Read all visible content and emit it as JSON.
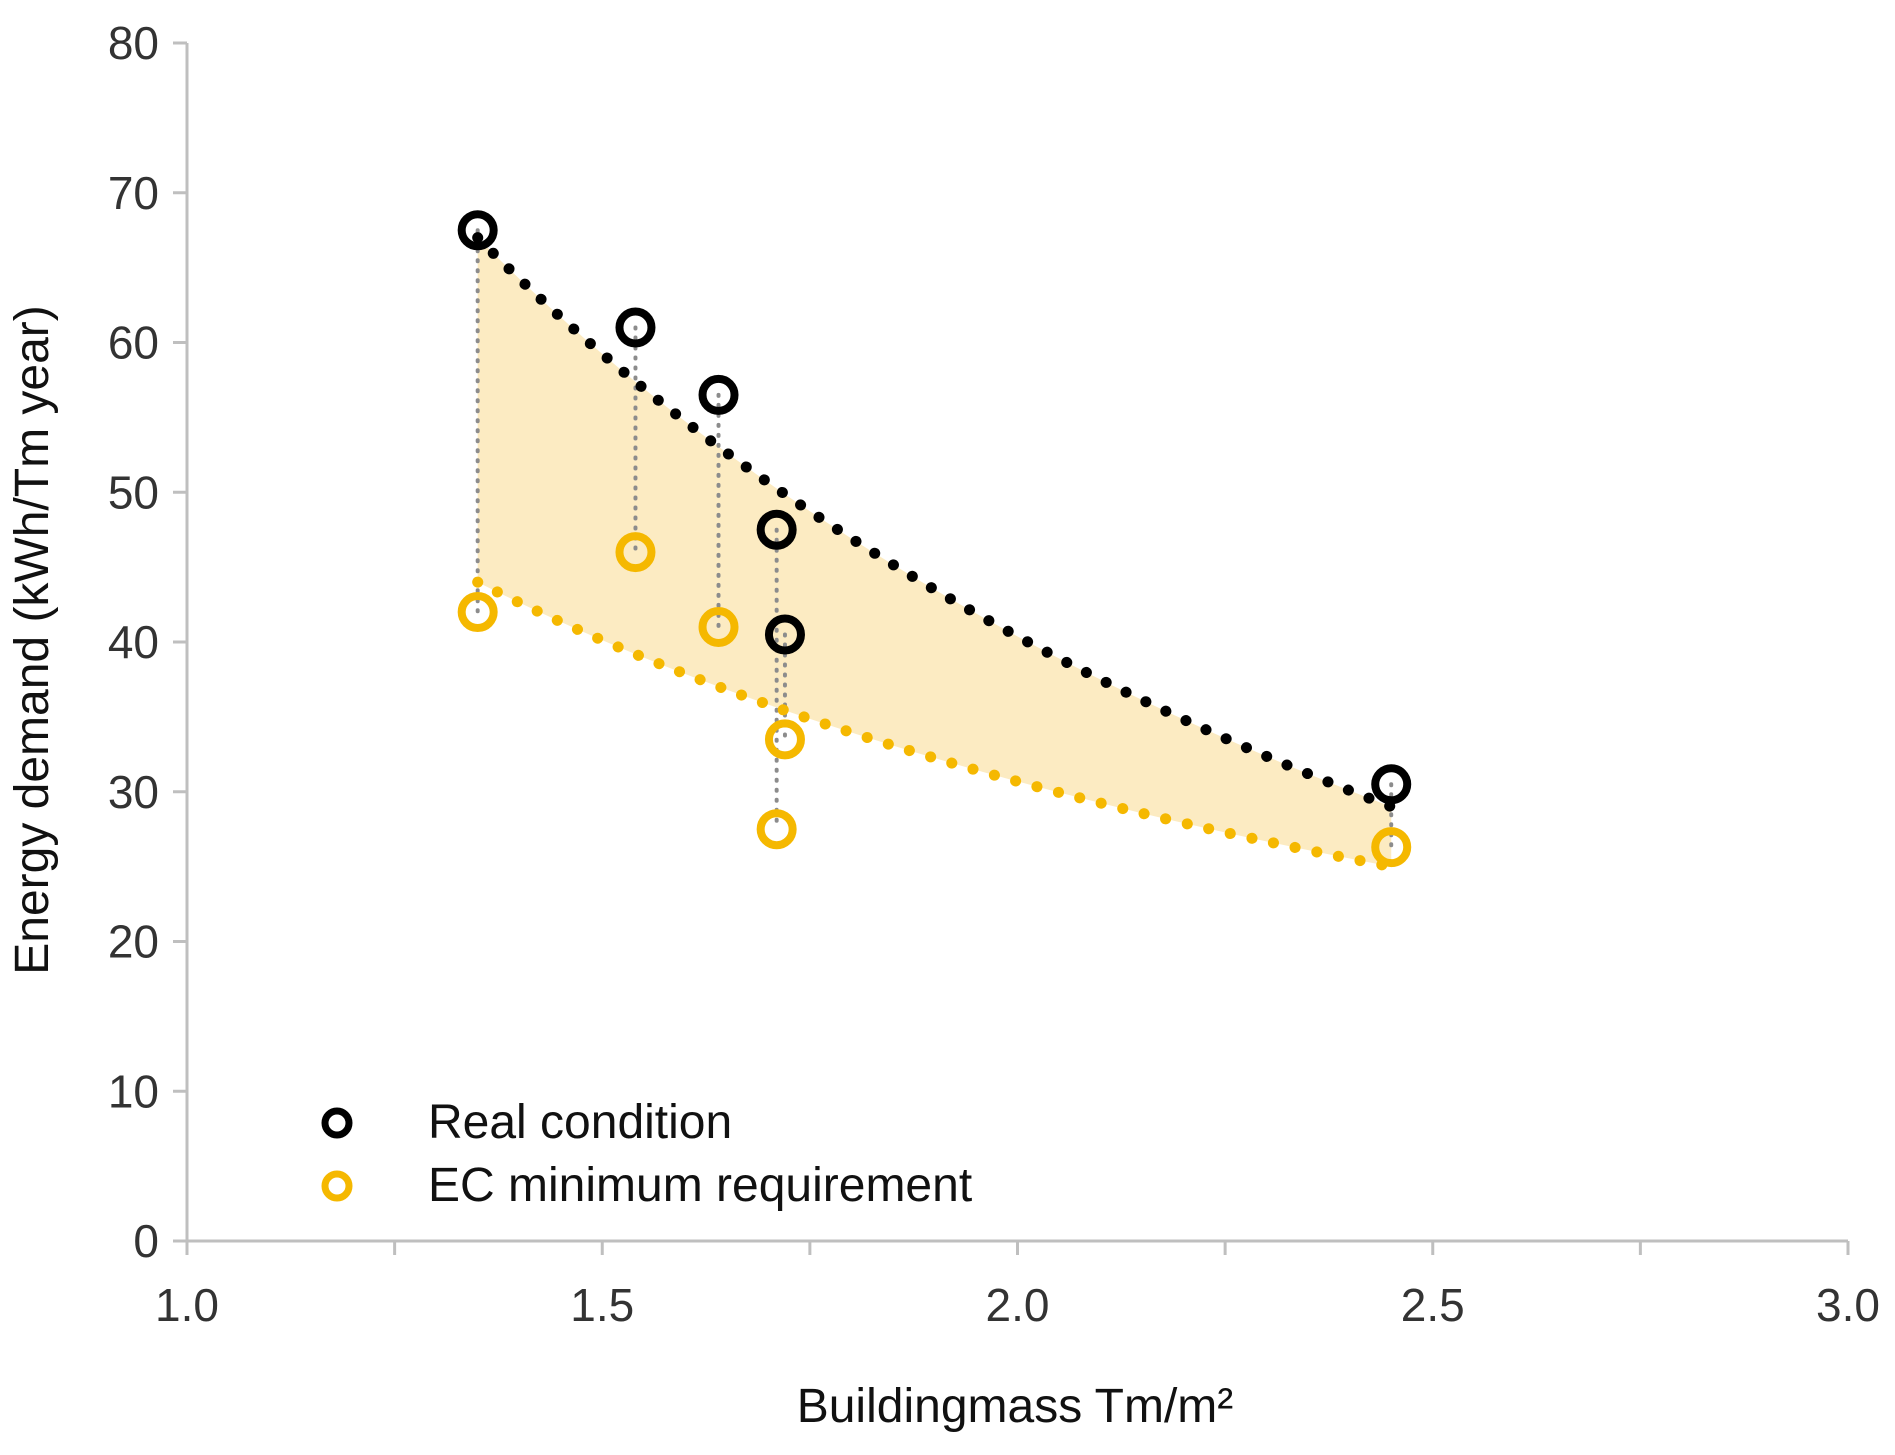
{
  "chart_data": {
    "type": "scatter",
    "title": "",
    "xlabel": "Buildingmass Tm/m²",
    "ylabel": "Energy demand (kWh/Tm year)",
    "xlim": [
      1.0,
      3.0
    ],
    "ylim": [
      0,
      80
    ],
    "x_ticks": [
      "1.0",
      "1.5",
      "2.0",
      "2.5",
      "3.0"
    ],
    "y_ticks": [
      "0",
      "10",
      "20",
      "30",
      "40",
      "50",
      "60",
      "70",
      "80"
    ],
    "grid": false,
    "legend_position": "bottom-left",
    "series": [
      {
        "name": "Real condition",
        "color": "#000000",
        "points": [
          [
            1.35,
            67.5
          ],
          [
            1.54,
            61.0
          ],
          [
            1.64,
            56.5
          ],
          [
            1.71,
            47.5
          ],
          [
            1.72,
            40.5
          ],
          [
            2.45,
            30.5
          ]
        ]
      },
      {
        "name": "EC minimum requirement",
        "color": "#F5B800",
        "points": [
          [
            1.35,
            42.0
          ],
          [
            1.54,
            46.0
          ],
          [
            1.64,
            41.0
          ],
          [
            1.71,
            27.5
          ],
          [
            1.72,
            33.5
          ],
          [
            2.45,
            26.3
          ]
        ]
      }
    ],
    "trendlines": [
      {
        "series": "Real condition",
        "color": "#000000",
        "style": "dotted",
        "from": [
          1.35,
          67.0
        ],
        "to": [
          2.45,
          29.0
        ]
      },
      {
        "series": "EC minimum requirement",
        "color": "#F5B800",
        "style": "dotted",
        "from": [
          1.35,
          44.0
        ],
        "to": [
          2.45,
          25.0
        ]
      }
    ],
    "shaded_band_color": "#FCEBC2",
    "connector_color": "#8C8C8C"
  }
}
